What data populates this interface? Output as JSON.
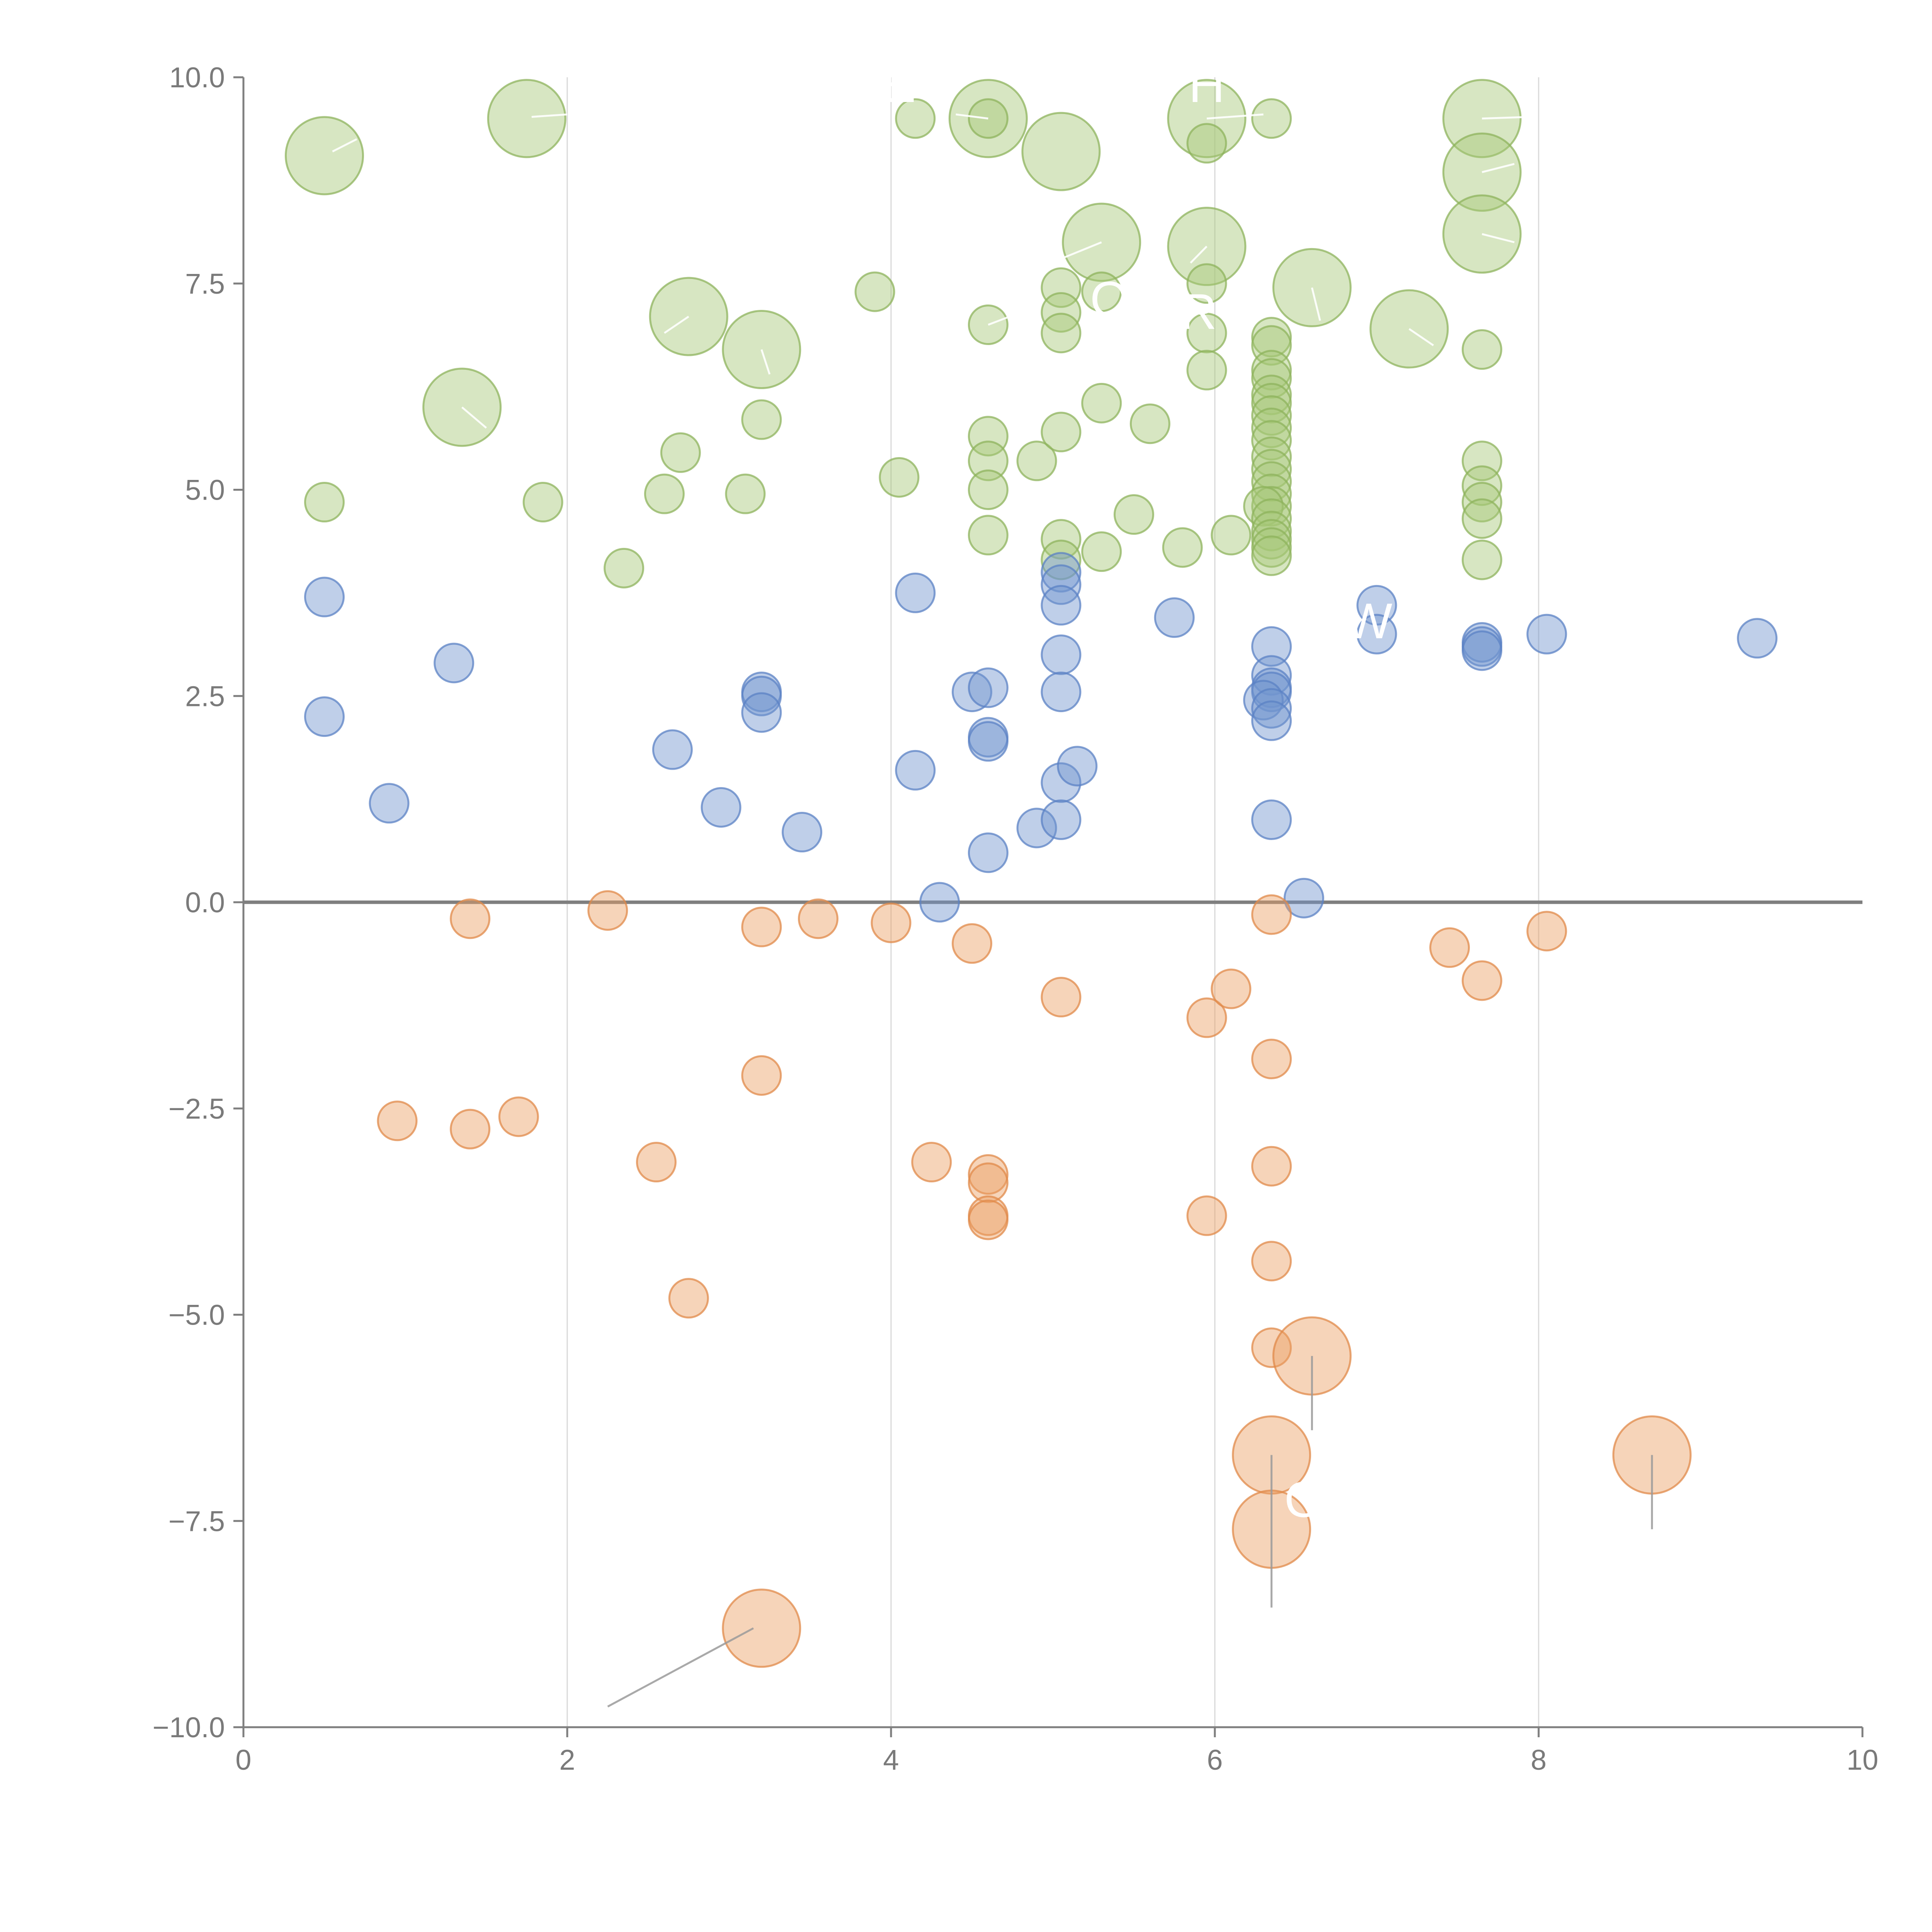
{
  "chart_data": {
    "type": "scatter",
    "subtype": "bubble",
    "title": "",
    "xlabel": "",
    "ylabel": "",
    "xlim": [
      0,
      10
    ],
    "ylim": [
      -10,
      10
    ],
    "xticks": [
      0,
      2,
      4,
      6,
      8,
      10
    ],
    "xtick_labels": [
      "0",
      "2",
      "4",
      "6",
      "8",
      "10"
    ],
    "yticks": [
      -10,
      -7.5,
      -5,
      -2.5,
      0,
      2.5,
      5,
      7.5,
      10
    ],
    "ytick_labels": [
      "−10.0",
      "−7.5",
      "−5.0",
      "−2.5",
      "0.0",
      "2.5",
      "5.0",
      "7.5",
      "10.0"
    ],
    "vertical_grid": true,
    "horizontal_grid": false,
    "reference_line_y": 0,
    "size_units": "relative bubble area (1 = smallest)",
    "colors": {
      "green_fill": "#a6c878",
      "green_stroke": "#8db35c",
      "blue_fill": "#7094cf",
      "blue_stroke": "#5b82c4",
      "orange_fill": "#ec9f64",
      "orange_stroke": "#e0894a",
      "text": "#7a7a7a",
      "axis": "#7f7f7f",
      "grid": "#d8d8d8",
      "leader_light": "#ffffff",
      "leader_dark": "#9a9a9a"
    },
    "series": [
      {
        "name": "green",
        "color_key": "green",
        "points": [
          {
            "x": 0.5,
            "y": 9.05,
            "s": 4
          },
          {
            "x": 1.75,
            "y": 9.5,
            "s": 4
          },
          {
            "x": 4.15,
            "y": 9.5,
            "s": 1
          },
          {
            "x": 4.6,
            "y": 9.5,
            "s": 4
          },
          {
            "x": 4.6,
            "y": 9.5,
            "s": 1
          },
          {
            "x": 5.05,
            "y": 9.1,
            "s": 4
          },
          {
            "x": 5.95,
            "y": 9.5,
            "s": 4
          },
          {
            "x": 5.95,
            "y": 9.2,
            "s": 1
          },
          {
            "x": 6.35,
            "y": 9.5,
            "s": 1
          },
          {
            "x": 7.65,
            "y": 9.5,
            "s": 4
          },
          {
            "x": 7.65,
            "y": 8.85,
            "s": 4
          },
          {
            "x": 7.65,
            "y": 8.1,
            "s": 4
          },
          {
            "x": 5.3,
            "y": 8.0,
            "s": 4
          },
          {
            "x": 5.95,
            "y": 7.95,
            "s": 4
          },
          {
            "x": 2.75,
            "y": 7.1,
            "s": 4
          },
          {
            "x": 3.2,
            "y": 6.7,
            "s": 4
          },
          {
            "x": 3.9,
            "y": 7.4,
            "s": 1
          },
          {
            "x": 4.6,
            "y": 7.0,
            "s": 1
          },
          {
            "x": 5.05,
            "y": 7.45,
            "s": 1
          },
          {
            "x": 5.05,
            "y": 7.15,
            "s": 1
          },
          {
            "x": 5.05,
            "y": 6.9,
            "s": 1
          },
          {
            "x": 5.3,
            "y": 7.4,
            "s": 1
          },
          {
            "x": 5.95,
            "y": 7.5,
            "s": 1
          },
          {
            "x": 5.95,
            "y": 6.9,
            "s": 1
          },
          {
            "x": 5.95,
            "y": 6.45,
            "s": 1
          },
          {
            "x": 6.6,
            "y": 7.45,
            "s": 4
          },
          {
            "x": 7.2,
            "y": 6.95,
            "s": 4
          },
          {
            "x": 7.65,
            "y": 6.7,
            "s": 1
          },
          {
            "x": 1.35,
            "y": 6.0,
            "s": 4
          },
          {
            "x": 3.2,
            "y": 5.85,
            "s": 1
          },
          {
            "x": 2.7,
            "y": 5.45,
            "s": 1
          },
          {
            "x": 2.6,
            "y": 4.95,
            "s": 1
          },
          {
            "x": 3.1,
            "y": 4.95,
            "s": 1
          },
          {
            "x": 4.05,
            "y": 5.15,
            "s": 1
          },
          {
            "x": 4.6,
            "y": 5.65,
            "s": 1
          },
          {
            "x": 4.6,
            "y": 5.35,
            "s": 1
          },
          {
            "x": 4.6,
            "y": 5.0,
            "s": 1
          },
          {
            "x": 4.6,
            "y": 4.45,
            "s": 1
          },
          {
            "x": 4.9,
            "y": 5.35,
            "s": 1
          },
          {
            "x": 5.05,
            "y": 5.7,
            "s": 1
          },
          {
            "x": 5.3,
            "y": 6.05,
            "s": 1
          },
          {
            "x": 5.6,
            "y": 5.8,
            "s": 1
          },
          {
            "x": 5.5,
            "y": 4.7,
            "s": 1
          },
          {
            "x": 5.05,
            "y": 4.4,
            "s": 1
          },
          {
            "x": 5.05,
            "y": 4.15,
            "s": 1
          },
          {
            "x": 5.3,
            "y": 4.25,
            "s": 1
          },
          {
            "x": 5.8,
            "y": 4.3,
            "s": 1
          },
          {
            "x": 6.1,
            "y": 4.45,
            "s": 1
          },
          {
            "x": 0.5,
            "y": 4.85,
            "s": 1
          },
          {
            "x": 1.85,
            "y": 4.85,
            "s": 1
          },
          {
            "x": 2.35,
            "y": 4.05,
            "s": 1
          },
          {
            "x": 6.35,
            "y": 6.85,
            "s": 1
          },
          {
            "x": 6.35,
            "y": 6.75,
            "s": 1
          },
          {
            "x": 6.35,
            "y": 6.45,
            "s": 1
          },
          {
            "x": 6.35,
            "y": 6.35,
            "s": 1
          },
          {
            "x": 6.35,
            "y": 6.15,
            "s": 1
          },
          {
            "x": 6.35,
            "y": 6.05,
            "s": 1
          },
          {
            "x": 6.35,
            "y": 5.9,
            "s": 1
          },
          {
            "x": 6.35,
            "y": 5.75,
            "s": 1
          },
          {
            "x": 6.35,
            "y": 5.6,
            "s": 1
          },
          {
            "x": 6.35,
            "y": 5.4,
            "s": 1
          },
          {
            "x": 6.35,
            "y": 5.25,
            "s": 1
          },
          {
            "x": 6.35,
            "y": 5.1,
            "s": 1
          },
          {
            "x": 6.35,
            "y": 4.95,
            "s": 1
          },
          {
            "x": 6.35,
            "y": 4.8,
            "s": 1
          },
          {
            "x": 6.3,
            "y": 4.8,
            "s": 1
          },
          {
            "x": 6.35,
            "y": 4.65,
            "s": 1
          },
          {
            "x": 6.35,
            "y": 4.5,
            "s": 1
          },
          {
            "x": 6.35,
            "y": 4.4,
            "s": 1
          },
          {
            "x": 6.35,
            "y": 4.3,
            "s": 1
          },
          {
            "x": 6.35,
            "y": 4.2,
            "s": 1
          },
          {
            "x": 7.65,
            "y": 5.35,
            "s": 1
          },
          {
            "x": 7.65,
            "y": 5.05,
            "s": 1
          },
          {
            "x": 7.65,
            "y": 4.85,
            "s": 1
          },
          {
            "x": 7.65,
            "y": 4.65,
            "s": 1
          },
          {
            "x": 7.65,
            "y": 4.15,
            "s": 1
          }
        ]
      },
      {
        "name": "blue",
        "color_key": "blue",
        "points": [
          {
            "x": 0.5,
            "y": 3.7,
            "s": 1
          },
          {
            "x": 0.5,
            "y": 2.25,
            "s": 1
          },
          {
            "x": 0.9,
            "y": 1.2,
            "s": 1
          },
          {
            "x": 1.3,
            "y": 2.9,
            "s": 1
          },
          {
            "x": 2.65,
            "y": 1.85,
            "s": 1
          },
          {
            "x": 2.95,
            "y": 1.15,
            "s": 1
          },
          {
            "x": 3.2,
            "y": 2.55,
            "s": 1
          },
          {
            "x": 3.2,
            "y": 2.5,
            "s": 1
          },
          {
            "x": 3.2,
            "y": 2.3,
            "s": 1
          },
          {
            "x": 3.45,
            "y": 0.85,
            "s": 1
          },
          {
            "x": 4.15,
            "y": 3.75,
            "s": 1
          },
          {
            "x": 4.15,
            "y": 1.6,
            "s": 1
          },
          {
            "x": 4.3,
            "y": 0.0,
            "s": 1
          },
          {
            "x": 4.5,
            "y": 2.55,
            "s": 1
          },
          {
            "x": 4.6,
            "y": 2.6,
            "s": 1
          },
          {
            "x": 4.6,
            "y": 2.0,
            "s": 1
          },
          {
            "x": 4.6,
            "y": 1.95,
            "s": 1
          },
          {
            "x": 4.6,
            "y": 0.6,
            "s": 1
          },
          {
            "x": 4.9,
            "y": 0.9,
            "s": 1
          },
          {
            "x": 5.05,
            "y": 4.0,
            "s": 1
          },
          {
            "x": 5.05,
            "y": 3.85,
            "s": 1
          },
          {
            "x": 5.05,
            "y": 3.6,
            "s": 1
          },
          {
            "x": 5.05,
            "y": 3.0,
            "s": 1
          },
          {
            "x": 5.05,
            "y": 2.55,
            "s": 1
          },
          {
            "x": 5.05,
            "y": 1.45,
            "s": 1
          },
          {
            "x": 5.05,
            "y": 1.0,
            "s": 1
          },
          {
            "x": 5.15,
            "y": 1.65,
            "s": 1
          },
          {
            "x": 5.75,
            "y": 3.45,
            "s": 1
          },
          {
            "x": 6.35,
            "y": 3.1,
            "s": 1
          },
          {
            "x": 6.35,
            "y": 2.75,
            "s": 1
          },
          {
            "x": 6.35,
            "y": 2.6,
            "s": 1
          },
          {
            "x": 6.35,
            "y": 2.55,
            "s": 1
          },
          {
            "x": 6.3,
            "y": 2.45,
            "s": 1
          },
          {
            "x": 6.35,
            "y": 2.35,
            "s": 1
          },
          {
            "x": 6.35,
            "y": 2.2,
            "s": 1
          },
          {
            "x": 6.35,
            "y": 1.0,
            "s": 1
          },
          {
            "x": 6.55,
            "y": 0.05,
            "s": 1
          },
          {
            "x": 7.0,
            "y": 3.6,
            "s": 1
          },
          {
            "x": 7.0,
            "y": 3.25,
            "s": 1
          },
          {
            "x": 7.65,
            "y": 3.15,
            "s": 1
          },
          {
            "x": 7.65,
            "y": 3.1,
            "s": 1
          },
          {
            "x": 7.65,
            "y": 3.05,
            "s": 1
          },
          {
            "x": 8.05,
            "y": 3.25,
            "s": 1
          },
          {
            "x": 9.35,
            "y": 3.2,
            "s": 1
          }
        ]
      },
      {
        "name": "orange",
        "color_key": "orange",
        "points": [
          {
            "x": 1.4,
            "y": -0.2,
            "s": 1
          },
          {
            "x": 2.25,
            "y": -0.1,
            "s": 1
          },
          {
            "x": 3.2,
            "y": -0.3,
            "s": 1
          },
          {
            "x": 3.55,
            "y": -0.2,
            "s": 1
          },
          {
            "x": 4.0,
            "y": -0.25,
            "s": 1
          },
          {
            "x": 4.5,
            "y": -0.5,
            "s": 1
          },
          {
            "x": 5.05,
            "y": -1.15,
            "s": 1
          },
          {
            "x": 5.95,
            "y": -1.4,
            "s": 1
          },
          {
            "x": 6.1,
            "y": -1.05,
            "s": 1
          },
          {
            "x": 6.35,
            "y": -0.15,
            "s": 1
          },
          {
            "x": 6.35,
            "y": -1.9,
            "s": 1
          },
          {
            "x": 7.45,
            "y": -0.55,
            "s": 1
          },
          {
            "x": 7.65,
            "y": -0.95,
            "s": 1
          },
          {
            "x": 8.05,
            "y": -0.35,
            "s": 1
          },
          {
            "x": 3.2,
            "y": -2.1,
            "s": 1
          },
          {
            "x": 0.95,
            "y": -2.65,
            "s": 1
          },
          {
            "x": 1.4,
            "y": -2.75,
            "s": 1
          },
          {
            "x": 1.7,
            "y": -2.6,
            "s": 1
          },
          {
            "x": 2.55,
            "y": -3.15,
            "s": 1
          },
          {
            "x": 4.25,
            "y": -3.15,
            "s": 1
          },
          {
            "x": 4.6,
            "y": -3.3,
            "s": 1
          },
          {
            "x": 4.6,
            "y": -3.4,
            "s": 1
          },
          {
            "x": 4.6,
            "y": -3.8,
            "s": 1
          },
          {
            "x": 4.6,
            "y": -3.85,
            "s": 1
          },
          {
            "x": 5.95,
            "y": -3.8,
            "s": 1
          },
          {
            "x": 6.35,
            "y": -3.2,
            "s": 1
          },
          {
            "x": 6.35,
            "y": -4.35,
            "s": 1
          },
          {
            "x": 6.35,
            "y": -5.4,
            "s": 1
          },
          {
            "x": 2.75,
            "y": -4.8,
            "s": 1
          },
          {
            "x": 6.6,
            "y": -5.5,
            "s": 4
          },
          {
            "x": 6.35,
            "y": -6.7,
            "s": 4
          },
          {
            "x": 6.35,
            "y": -7.6,
            "s": 4
          },
          {
            "x": 8.7,
            "y": -6.7,
            "s": 4
          },
          {
            "x": 3.2,
            "y": -8.8,
            "s": 4
          }
        ]
      }
    ],
    "annotations": [
      {
        "text": "E",
        "x": 4.05,
        "y": 9.7,
        "tone": "light"
      },
      {
        "text": "H",
        "x": 5.95,
        "y": 9.7,
        "tone": "light"
      },
      {
        "text": "O",
        "x": 5.35,
        "y": 7.1,
        "tone": "light"
      },
      {
        "text": "R",
        "x": 5.9,
        "y": 6.95,
        "tone": "light"
      },
      {
        "text": "W",
        "x": 6.95,
        "y": 3.2,
        "tone": "light"
      },
      {
        "text": "O",
        "x": 6.55,
        "y": -7.45,
        "tone": "light"
      }
    ],
    "leader_lines": [
      {
        "x1": 0.55,
        "y1": 9.1,
        "x2": 0.7,
        "y2": 9.25,
        "tone": "light"
      },
      {
        "x1": 1.78,
        "y1": 9.52,
        "x2": 2.0,
        "y2": 9.55,
        "tone": "light"
      },
      {
        "x1": 4.6,
        "y1": 9.5,
        "x2": 4.4,
        "y2": 9.55,
        "tone": "light"
      },
      {
        "x1": 5.95,
        "y1": 9.5,
        "x2": 6.3,
        "y2": 9.55,
        "tone": "light"
      },
      {
        "x1": 7.65,
        "y1": 9.5,
        "x2": 7.95,
        "y2": 9.52,
        "tone": "light"
      },
      {
        "x1": 7.65,
        "y1": 8.85,
        "x2": 7.85,
        "y2": 8.95,
        "tone": "light"
      },
      {
        "x1": 7.65,
        "y1": 8.1,
        "x2": 7.85,
        "y2": 8.0,
        "tone": "light"
      },
      {
        "x1": 5.3,
        "y1": 8.0,
        "x2": 5.05,
        "y2": 7.8,
        "tone": "light"
      },
      {
        "x1": 5.95,
        "y1": 7.95,
        "x2": 5.85,
        "y2": 7.75,
        "tone": "light"
      },
      {
        "x1": 2.75,
        "y1": 7.1,
        "x2": 2.6,
        "y2": 6.9,
        "tone": "light"
      },
      {
        "x1": 3.2,
        "y1": 6.7,
        "x2": 3.25,
        "y2": 6.4,
        "tone": "light"
      },
      {
        "x1": 4.6,
        "y1": 7.0,
        "x2": 4.8,
        "y2": 7.15,
        "tone": "light"
      },
      {
        "x1": 6.6,
        "y1": 7.45,
        "x2": 6.65,
        "y2": 7.05,
        "tone": "light"
      },
      {
        "x1": 7.2,
        "y1": 6.95,
        "x2": 7.35,
        "y2": 6.75,
        "tone": "light"
      },
      {
        "x1": 1.35,
        "y1": 6.0,
        "x2": 1.5,
        "y2": 5.75,
        "tone": "light"
      },
      {
        "x1": 6.6,
        "y1": -5.5,
        "x2": 6.6,
        "y2": -6.4,
        "tone": "dark"
      },
      {
        "x1": 6.35,
        "y1": -6.7,
        "x2": 6.35,
        "y2": -8.55,
        "tone": "dark"
      },
      {
        "x1": 8.7,
        "y1": -6.7,
        "x2": 8.7,
        "y2": -7.6,
        "tone": "dark"
      },
      {
        "x1": 3.15,
        "y1": -8.8,
        "x2": 2.25,
        "y2": -9.75,
        "tone": "dark"
      }
    ]
  }
}
